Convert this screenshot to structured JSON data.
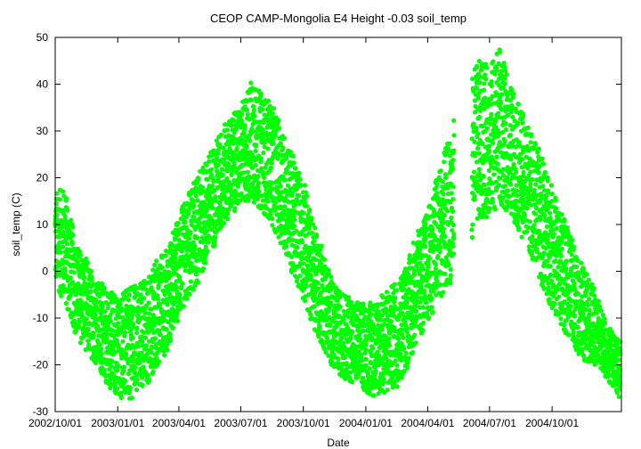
{
  "chart_data": {
    "type": "scatter",
    "title": "CEOP CAMP-Mongolia E4 Height -0.03 soil_temp",
    "xlabel": "Date",
    "ylabel": "soil_temp (C)",
    "xlim": [
      "2002-10-01",
      "2005-01-11"
    ],
    "ylim": [
      -30,
      50
    ],
    "grid": false,
    "legend": "none",
    "y_ticks": [
      -30,
      -20,
      -10,
      0,
      10,
      20,
      30,
      40,
      50
    ],
    "x_ticks": [
      {
        "date": "2002-10-01",
        "label": "2002/10/01"
      },
      {
        "date": "2003-01-01",
        "label": "2003/01/01"
      },
      {
        "date": "2003-04-01",
        "label": "2003/04/01"
      },
      {
        "date": "2003-07-01",
        "label": "2003/07/01"
      },
      {
        "date": "2003-10-01",
        "label": "2003/10/01"
      },
      {
        "date": "2004-01-01",
        "label": "2004/01/01"
      },
      {
        "date": "2004-04-01",
        "label": "2004/04/01"
      },
      {
        "date": "2004-07-01",
        "label": "2004/07/01"
      },
      {
        "date": "2004-10-01",
        "label": "2004/10/01"
      }
    ],
    "series": [
      {
        "color": "#00ff00",
        "envelope": [
          {
            "date": "2002-10-01",
            "min": -3,
            "max": 17
          },
          {
            "date": "2002-10-15",
            "min": -7,
            "max": 18
          },
          {
            "date": "2002-11-01",
            "min": -14,
            "max": 6
          },
          {
            "date": "2002-11-15",
            "min": -17,
            "max": 3
          },
          {
            "date": "2002-12-01",
            "min": -20,
            "max": -2
          },
          {
            "date": "2002-12-15",
            "min": -24,
            "max": -3
          },
          {
            "date": "2003-01-01",
            "min": -27,
            "max": -5
          },
          {
            "date": "2003-01-15",
            "min": -28,
            "max": -4
          },
          {
            "date": "2003-02-01",
            "min": -26,
            "max": -2
          },
          {
            "date": "2003-02-15",
            "min": -24,
            "max": -1
          },
          {
            "date": "2003-03-01",
            "min": -20,
            "max": 3
          },
          {
            "date": "2003-03-15",
            "min": -17,
            "max": 5
          },
          {
            "date": "2003-04-01",
            "min": -10,
            "max": 12
          },
          {
            "date": "2003-04-15",
            "min": -6,
            "max": 17
          },
          {
            "date": "2003-05-01",
            "min": -2,
            "max": 21
          },
          {
            "date": "2003-05-15",
            "min": 3,
            "max": 25
          },
          {
            "date": "2003-06-01",
            "min": 8,
            "max": 30
          },
          {
            "date": "2003-06-15",
            "min": 12,
            "max": 33
          },
          {
            "date": "2003-07-01",
            "min": 14,
            "max": 35
          },
          {
            "date": "2003-07-15",
            "min": 15,
            "max": 41
          },
          {
            "date": "2003-08-01",
            "min": 13,
            "max": 38
          },
          {
            "date": "2003-08-15",
            "min": 10,
            "max": 36
          },
          {
            "date": "2003-09-01",
            "min": 5,
            "max": 30
          },
          {
            "date": "2003-09-15",
            "min": -1,
            "max": 25
          },
          {
            "date": "2003-10-01",
            "min": -6,
            "max": 20
          },
          {
            "date": "2003-10-15",
            "min": -12,
            "max": 11
          },
          {
            "date": "2003-11-01",
            "min": -17,
            "max": 4
          },
          {
            "date": "2003-11-15",
            "min": -21,
            "max": -3
          },
          {
            "date": "2003-12-01",
            "min": -23,
            "max": -5
          },
          {
            "date": "2003-12-15",
            "min": -24,
            "max": -6
          },
          {
            "date": "2004-01-01",
            "min": -26,
            "max": -7
          },
          {
            "date": "2004-01-15",
            "min": -27,
            "max": -6
          },
          {
            "date": "2004-02-01",
            "min": -26,
            "max": -4
          },
          {
            "date": "2004-02-15",
            "min": -25,
            "max": -2
          },
          {
            "date": "2004-03-01",
            "min": -21,
            "max": 2
          },
          {
            "date": "2004-03-15",
            "min": -16,
            "max": 8
          },
          {
            "date": "2004-04-01",
            "min": -11,
            "max": 13
          },
          {
            "date": "2004-04-15",
            "min": -7,
            "max": 21
          },
          {
            "date": "2004-05-01",
            "min": -3,
            "max": 28
          },
          {
            "date": "2004-05-10",
            "min": -2,
            "max": 33
          },
          {
            "date": "2004-05-15",
            "min": null,
            "max": null
          },
          {
            "date": "2004-06-01",
            "min": null,
            "max": null
          },
          {
            "date": "2004-06-05",
            "min": 7,
            "max": 43
          },
          {
            "date": "2004-06-15",
            "min": 10,
            "max": 45
          },
          {
            "date": "2004-07-01",
            "min": 12,
            "max": 44
          },
          {
            "date": "2004-07-15",
            "min": 14,
            "max": 48
          },
          {
            "date": "2004-08-01",
            "min": 12,
            "max": 40
          },
          {
            "date": "2004-08-15",
            "min": 8,
            "max": 35
          },
          {
            "date": "2004-09-01",
            "min": 3,
            "max": 30
          },
          {
            "date": "2004-09-15",
            "min": -3,
            "max": 25
          },
          {
            "date": "2004-10-01",
            "min": -8,
            "max": 18
          },
          {
            "date": "2004-10-15",
            "min": -12,
            "max": 13
          },
          {
            "date": "2004-11-01",
            "min": -16,
            "max": 6
          },
          {
            "date": "2004-11-15",
            "min": -19,
            "max": 1
          },
          {
            "date": "2004-12-01",
            "min": -20,
            "max": -3
          },
          {
            "date": "2004-12-15",
            "min": -22,
            "max": -9
          },
          {
            "date": "2005-01-01",
            "min": -25,
            "max": -14
          },
          {
            "date": "2005-01-09",
            "min": -28,
            "max": -15
          }
        ]
      }
    ]
  }
}
